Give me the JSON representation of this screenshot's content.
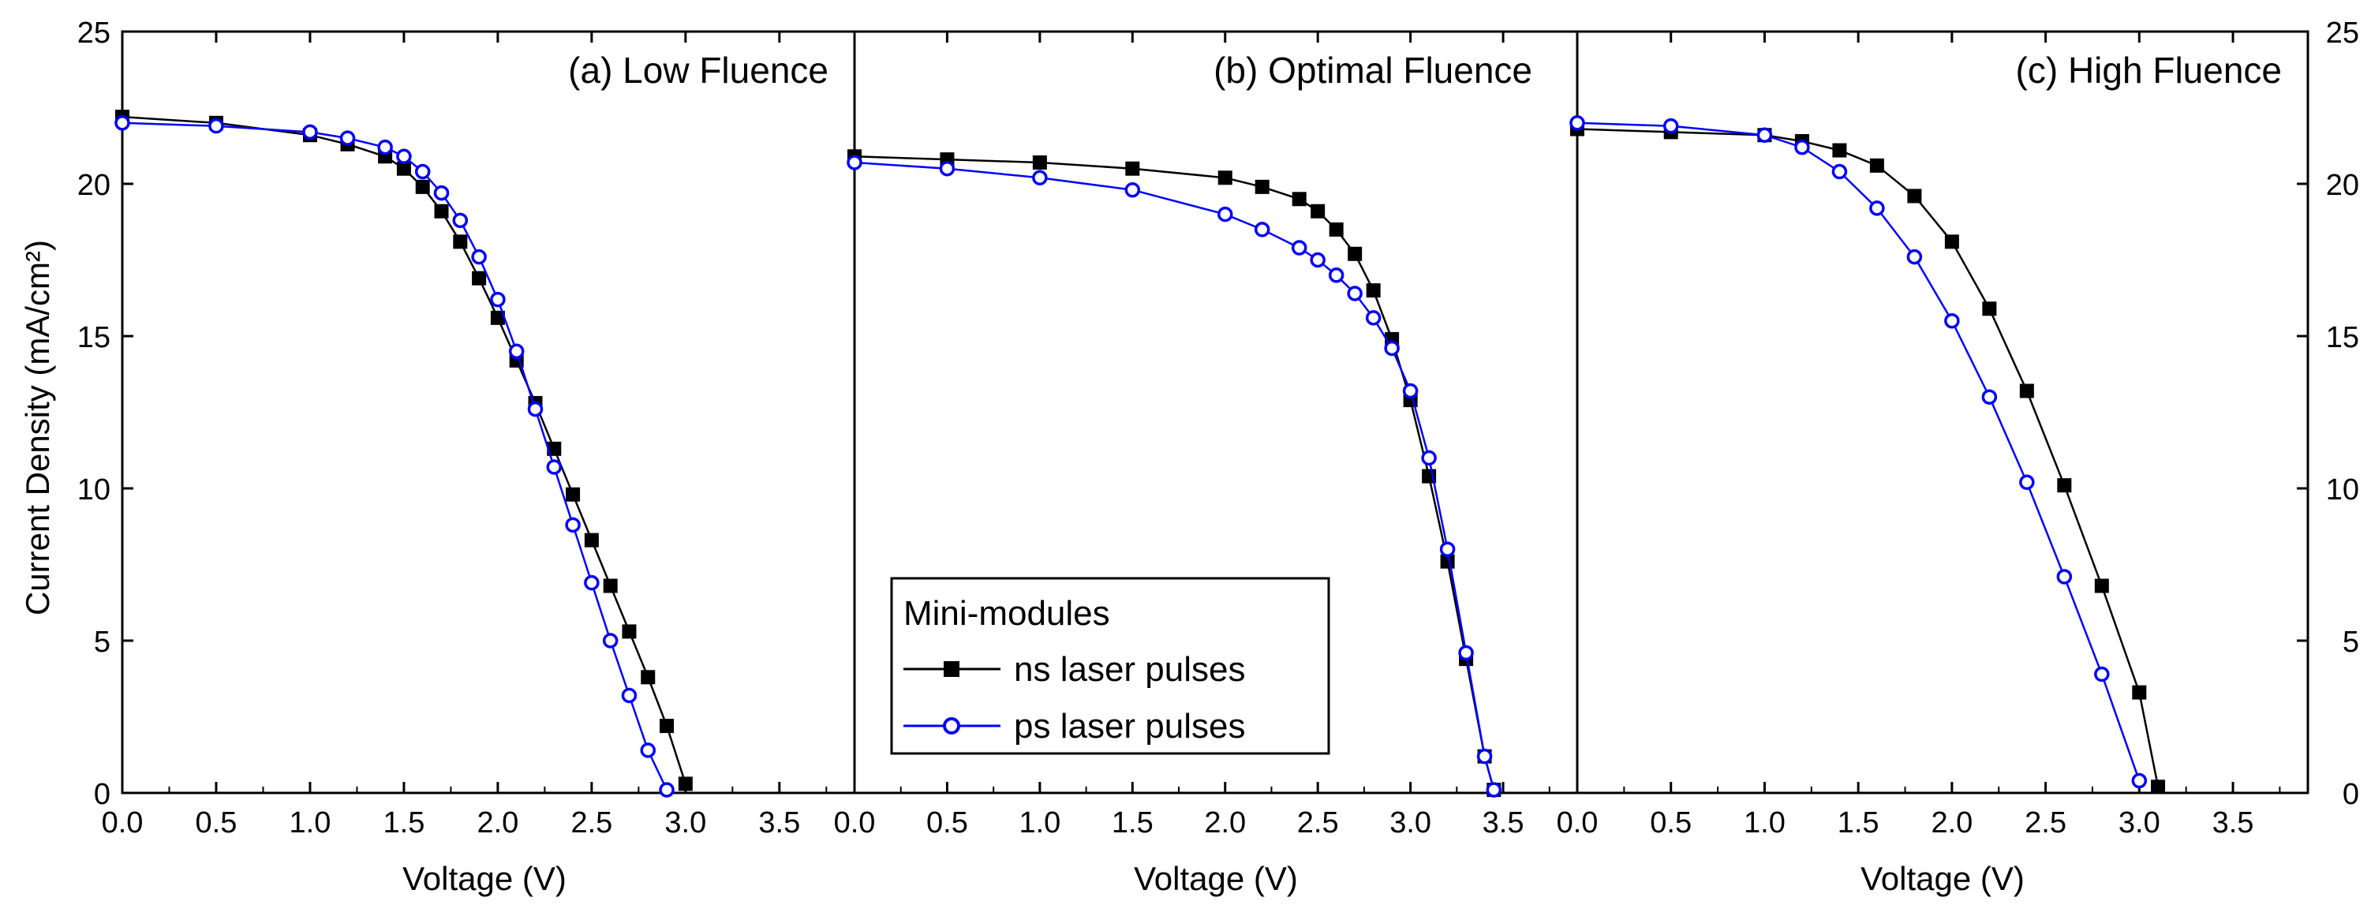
{
  "chart_data": {
    "type": "line",
    "ylabel": "Current Density (mA/cm²)",
    "ylim": [
      0,
      25
    ],
    "yticks": [
      0,
      5,
      10,
      15,
      20,
      25
    ],
    "xlim": [
      0,
      3.9
    ],
    "xticks": [
      0,
      0.5,
      1.0,
      1.5,
      2.0,
      2.5,
      3.0,
      3.5
    ],
    "xtick_labels": [
      "0.0",
      "0.5",
      "1.0",
      "1.5",
      "2.0",
      "2.5",
      "3.0",
      "3.5"
    ],
    "ytick_labels": [
      "0",
      "5",
      "10",
      "15",
      "20",
      "25"
    ],
    "legend": {
      "title": "Mini-modules",
      "entries": [
        {
          "label": "ns laser pulses",
          "color": "#000000",
          "marker": "filled-square"
        },
        {
          "label": "ps laser pulses",
          "color": "#0000ff",
          "marker": "open-circle"
        }
      ]
    },
    "panels": [
      {
        "title": "(a) Low Fluence",
        "xlabel": "Voltage (V)",
        "series": [
          {
            "name": "ns laser pulses",
            "color": "#000000",
            "x": [
              0.0,
              0.5,
              1.0,
              1.2,
              1.4,
              1.5,
              1.6,
              1.7,
              1.8,
              1.9,
              2.0,
              2.1,
              2.2,
              2.3,
              2.4,
              2.5,
              2.6,
              2.7,
              2.8,
              2.9,
              3.0
            ],
            "y": [
              22.2,
              22.0,
              21.6,
              21.3,
              20.9,
              20.5,
              19.9,
              19.1,
              18.1,
              16.9,
              15.6,
              14.2,
              12.8,
              11.3,
              9.8,
              8.3,
              6.8,
              5.3,
              3.8,
              2.2,
              0.3
            ]
          },
          {
            "name": "ps laser pulses",
            "color": "#0000ff",
            "x": [
              0.0,
              0.5,
              1.0,
              1.2,
              1.4,
              1.5,
              1.6,
              1.7,
              1.8,
              1.9,
              2.0,
              2.1,
              2.2,
              2.3,
              2.4,
              2.5,
              2.6,
              2.7,
              2.8,
              2.9
            ],
            "y": [
              22.0,
              21.9,
              21.7,
              21.5,
              21.2,
              20.9,
              20.4,
              19.7,
              18.8,
              17.6,
              16.2,
              14.5,
              12.6,
              10.7,
              8.8,
              6.9,
              5.0,
              3.2,
              1.4,
              0.1
            ]
          }
        ]
      },
      {
        "title": "(b) Optimal Fluence",
        "xlabel": "Voltage (V)",
        "series": [
          {
            "name": "ns laser pulses",
            "color": "#000000",
            "x": [
              0.0,
              0.5,
              1.0,
              1.5,
              2.0,
              2.2,
              2.4,
              2.5,
              2.6,
              2.7,
              2.8,
              2.9,
              3.0,
              3.1,
              3.2,
              3.3,
              3.4,
              3.45
            ],
            "y": [
              20.9,
              20.8,
              20.7,
              20.5,
              20.2,
              19.9,
              19.5,
              19.1,
              18.5,
              17.7,
              16.5,
              14.9,
              12.9,
              10.4,
              7.6,
              4.4,
              1.2,
              0.1
            ]
          },
          {
            "name": "ps laser pulses",
            "color": "#0000ff",
            "x": [
              0.0,
              0.5,
              1.0,
              1.5,
              2.0,
              2.2,
              2.4,
              2.5,
              2.6,
              2.7,
              2.8,
              2.9,
              3.0,
              3.1,
              3.2,
              3.3,
              3.4,
              3.45
            ],
            "y": [
              20.7,
              20.5,
              20.2,
              19.8,
              19.0,
              18.5,
              17.9,
              17.5,
              17.0,
              16.4,
              15.6,
              14.6,
              13.2,
              11.0,
              8.0,
              4.6,
              1.2,
              0.1
            ]
          }
        ]
      },
      {
        "title": "(c) High Fluence",
        "xlabel": "Voltage (V)",
        "series": [
          {
            "name": "ns laser pulses",
            "color": "#000000",
            "x": [
              0.0,
              0.5,
              1.0,
              1.2,
              1.4,
              1.6,
              1.8,
              2.0,
              2.2,
              2.4,
              2.6,
              2.8,
              3.0,
              3.1
            ],
            "y": [
              21.8,
              21.7,
              21.6,
              21.4,
              21.1,
              20.6,
              19.6,
              18.1,
              15.9,
              13.2,
              10.1,
              6.8,
              3.3,
              0.2
            ]
          },
          {
            "name": "ps laser pulses",
            "color": "#0000ff",
            "x": [
              0.0,
              0.5,
              1.0,
              1.2,
              1.4,
              1.6,
              1.8,
              2.0,
              2.2,
              2.4,
              2.6,
              2.8,
              3.0
            ],
            "y": [
              22.0,
              21.9,
              21.6,
              21.2,
              20.4,
              19.2,
              17.6,
              15.5,
              13.0,
              10.2,
              7.1,
              3.9,
              0.4
            ]
          }
        ]
      }
    ]
  }
}
